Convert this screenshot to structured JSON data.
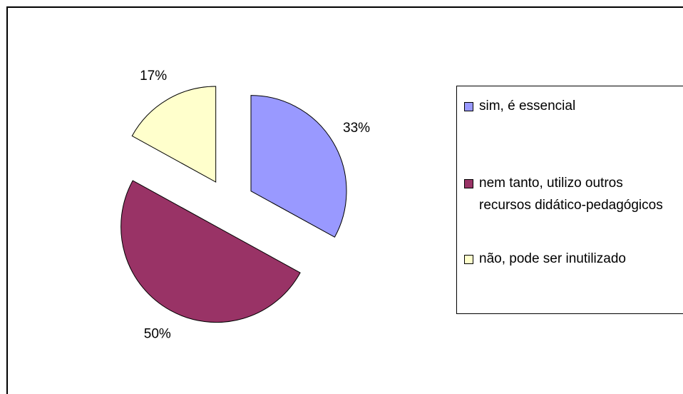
{
  "chart_data": {
    "type": "pie",
    "categories": [
      "sim, é essencial",
      "nem tanto, utilizo outros recursos didático-pedagógicos",
      "não, pode ser inutilizado"
    ],
    "values": [
      33,
      50,
      17
    ],
    "value_labels": [
      "33%",
      "50%",
      "17%"
    ],
    "colors": [
      "#9999ff",
      "#993366",
      "#ffffcc"
    ],
    "legend": "right"
  }
}
